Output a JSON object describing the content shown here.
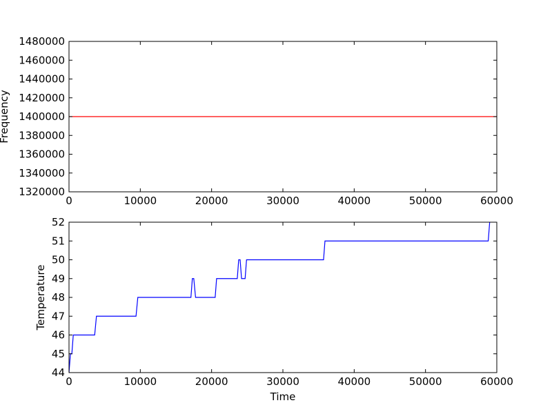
{
  "chart_data": [
    {
      "type": "line",
      "title": "",
      "xlabel": "",
      "ylabel": "Frequency",
      "xlim": [
        0,
        60000
      ],
      "ylim": [
        1320000,
        1480000
      ],
      "xticks": [
        "0",
        "10000",
        "20000",
        "30000",
        "40000",
        "50000",
        "60000"
      ],
      "yticks": [
        "1320000",
        "1340000",
        "1360000",
        "1380000",
        "1400000",
        "1420000",
        "1440000",
        "1460000",
        "1480000"
      ],
      "grid": false,
      "series": [
        {
          "color": "#ff0000",
          "x": [
            0,
            60000
          ],
          "y": [
            1400000,
            1400000
          ]
        }
      ]
    },
    {
      "type": "line",
      "title": "",
      "xlabel": "Time",
      "ylabel": "Temperature",
      "xlim": [
        0,
        60000
      ],
      "ylim": [
        44,
        52
      ],
      "xticks": [
        "0",
        "10000",
        "20000",
        "30000",
        "40000",
        "50000",
        "60000"
      ],
      "yticks": [
        "44",
        "45",
        "46",
        "47",
        "48",
        "49",
        "50",
        "51",
        "52"
      ],
      "grid": false,
      "series": [
        {
          "color": "#0000ff",
          "x": [
            0,
            200,
            400,
            600,
            3600,
            3850,
            9400,
            9650,
            17100,
            17300,
            17500,
            17750,
            20500,
            20700,
            23600,
            23800,
            24000,
            24200,
            24700,
            24900,
            35700,
            35900,
            58800,
            59000
          ],
          "y": [
            44,
            45,
            45,
            46,
            46,
            47,
            47,
            48,
            48,
            49,
            49,
            48,
            48,
            49,
            49,
            50,
            50,
            49,
            49,
            50,
            50,
            51,
            51,
            52
          ]
        }
      ]
    }
  ]
}
